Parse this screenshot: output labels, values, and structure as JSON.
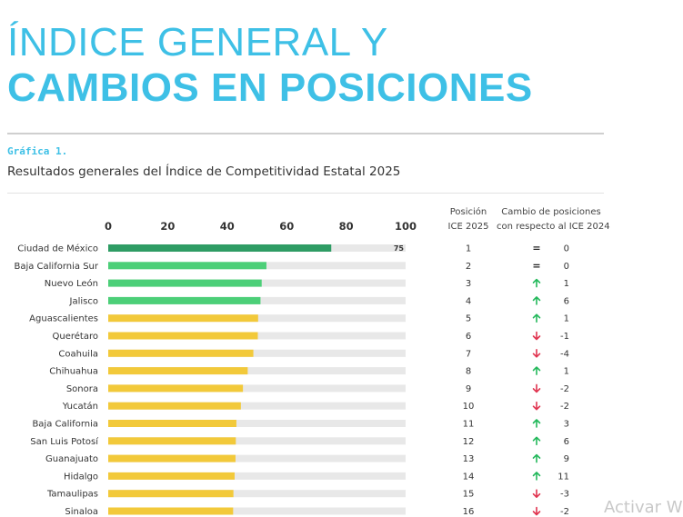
{
  "header": {
    "title_line1": "ÍNDICE GENERAL Y",
    "title_line2": "CAMBIOS EN POSICIONES",
    "graph_label": "Gráfica 1.",
    "subtitle": "Resultados generales del Índice de Competitividad Estatal 2025"
  },
  "columns": {
    "position_line1": "Posición",
    "position_line2": "ICE 2025",
    "change_line1": "Cambio de posiciones",
    "change_line2": "con respecto al ICE 2024"
  },
  "watermark": "Activar W",
  "colors": {
    "top": "#2e9c64",
    "high": "#4ccf78",
    "mid": "#f2c93a",
    "track": "#e8e8e8",
    "up": "#22b85a",
    "down": "#e0334f",
    "same": "#222222"
  },
  "chart_data": {
    "type": "bar",
    "orientation": "horizontal",
    "xlim": [
      0,
      100
    ],
    "xticks": [
      "0",
      "20",
      "40",
      "60",
      "80",
      "100"
    ],
    "value_label_shown": "75",
    "categories": [
      "Ciudad de México",
      "Baja California Sur",
      "Nuevo León",
      "Jalisco",
      "Aguascalientes",
      "Querétaro",
      "Coahuila",
      "Chihuahua",
      "Sonora",
      "Yucatán",
      "Baja California",
      "San Luis Potosí",
      "Guanajuato",
      "Hidalgo",
      "Tamaulipas",
      "Sinaloa"
    ],
    "values": [
      75,
      53.2,
      51.6,
      51.2,
      50.4,
      50.3,
      48.8,
      46.9,
      45.3,
      44.6,
      43.1,
      42.9,
      42.8,
      42.5,
      42.1,
      42.0
    ],
    "tier": [
      "top",
      "high",
      "high",
      "high",
      "mid",
      "mid",
      "mid",
      "mid",
      "mid",
      "mid",
      "mid",
      "mid",
      "mid",
      "mid",
      "mid",
      "mid"
    ],
    "positions": [
      "1",
      "2",
      "3",
      "4",
      "5",
      "6",
      "7",
      "8",
      "9",
      "10",
      "11",
      "12",
      "13",
      "14",
      "15",
      "16"
    ],
    "change_direction": [
      "same",
      "same",
      "up",
      "up",
      "up",
      "down",
      "down",
      "up",
      "down",
      "down",
      "up",
      "up",
      "up",
      "up",
      "down",
      "down"
    ],
    "change_values": [
      "0",
      "0",
      "1",
      "6",
      "1",
      "-1",
      "-4",
      "1",
      "-2",
      "-2",
      "3",
      "6",
      "9",
      "11",
      "-3",
      "-2"
    ]
  }
}
